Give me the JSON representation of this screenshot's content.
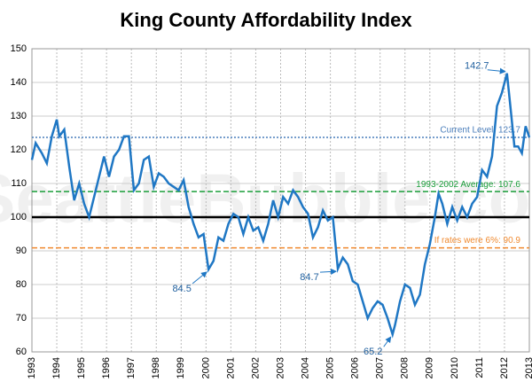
{
  "chart_data": {
    "type": "line",
    "title": "King County Affordability Index",
    "watermark": "SeattleBubble.com",
    "xlim": [
      1993,
      2013
    ],
    "xticks": [
      1993,
      1994,
      1995,
      1996,
      1997,
      1998,
      1999,
      2000,
      2001,
      2002,
      2003,
      2004,
      2005,
      2006,
      2007,
      2008,
      2009,
      2010,
      2011,
      2012,
      2013
    ],
    "ylim": [
      60,
      150
    ],
    "yticks": [
      60,
      70,
      80,
      90,
      100,
      110,
      120,
      130,
      140,
      150
    ],
    "grid": true,
    "series": [
      {
        "color": "#1f77c4",
        "x": [
          1993.0,
          1993.15,
          1993.4,
          1993.6,
          1993.8,
          1994.0,
          1994.1,
          1994.3,
          1994.5,
          1994.7,
          1994.9,
          1995.1,
          1995.3,
          1995.5,
          1995.7,
          1995.9,
          1996.1,
          1996.3,
          1996.5,
          1996.7,
          1996.9,
          1997.1,
          1997.3,
          1997.5,
          1997.7,
          1997.9,
          1998.1,
          1998.3,
          1998.5,
          1998.7,
          1998.9,
          1999.1,
          1999.3,
          1999.5,
          1999.7,
          1999.9,
          2000.1,
          2000.3,
          2000.5,
          2000.7,
          2000.9,
          2001.1,
          2001.3,
          2001.5,
          2001.7,
          2001.9,
          2002.1,
          2002.3,
          2002.5,
          2002.7,
          2002.9,
          2003.1,
          2003.3,
          2003.5,
          2003.7,
          2003.9,
          2004.1,
          2004.3,
          2004.5,
          2004.7,
          2004.9,
          2005.1,
          2005.3,
          2005.5,
          2005.7,
          2005.9,
          2006.1,
          2006.3,
          2006.5,
          2006.7,
          2006.9,
          2007.1,
          2007.3,
          2007.5,
          2007.6,
          2007.8,
          2008.0,
          2008.2,
          2008.4,
          2008.6,
          2008.8,
          2009.0,
          2009.2,
          2009.35,
          2009.5,
          2009.7,
          2009.9,
          2010.1,
          2010.3,
          2010.5,
          2010.7,
          2010.9,
          2011.1,
          2011.3,
          2011.5,
          2011.7,
          2011.9,
          2012.1,
          2012.25,
          2012.4,
          2012.55,
          2012.7,
          2012.85,
          2013.0
        ],
        "values": [
          117,
          122,
          119,
          116,
          124,
          129,
          124,
          126,
          115,
          105,
          110,
          104,
          100,
          106,
          112,
          118,
          112,
          118,
          120,
          124,
          124,
          108,
          110,
          117,
          118,
          109,
          113,
          112,
          110,
          109,
          108,
          111,
          103,
          98,
          94,
          95,
          84.5,
          87,
          94,
          93,
          98,
          101,
          100,
          95,
          100,
          96,
          97,
          93,
          98,
          105,
          100,
          106,
          104,
          108,
          106,
          103,
          101,
          94,
          97,
          102,
          99,
          100,
          84.7,
          88,
          86,
          81,
          80,
          75,
          70,
          73,
          75,
          74,
          70,
          65.2,
          68,
          75,
          80,
          79,
          74,
          77,
          86,
          92,
          100,
          107,
          104,
          98,
          103,
          99,
          103,
          100,
          104,
          106,
          114,
          112,
          118,
          133,
          137,
          142.7,
          132,
          121,
          121,
          119,
          127,
          123.7
        ]
      }
    ],
    "reference_lines": [
      {
        "value": 100,
        "color": "#000000",
        "style": "solid"
      },
      {
        "value": 123.7,
        "label": "Current Level: 123.7",
        "color": "#4a7ebb",
        "style": "dotted"
      },
      {
        "value": 107.6,
        "label": "1993-2002 Average: 107.6",
        "color": "#1a9e3a",
        "style": "dashed"
      },
      {
        "value": 90.9,
        "label": "If rates were 6%: 90.9",
        "color": "#f08a30",
        "style": "dashed"
      }
    ],
    "annotations": [
      {
        "text": "142.7",
        "x": 2012.1,
        "y": 142.7
      },
      {
        "text": "84.5",
        "x": 2000.1,
        "y": 84.5
      },
      {
        "text": "84.7",
        "x": 2005.3,
        "y": 84.7
      },
      {
        "text": "65.2",
        "x": 2007.5,
        "y": 65.2
      }
    ]
  }
}
